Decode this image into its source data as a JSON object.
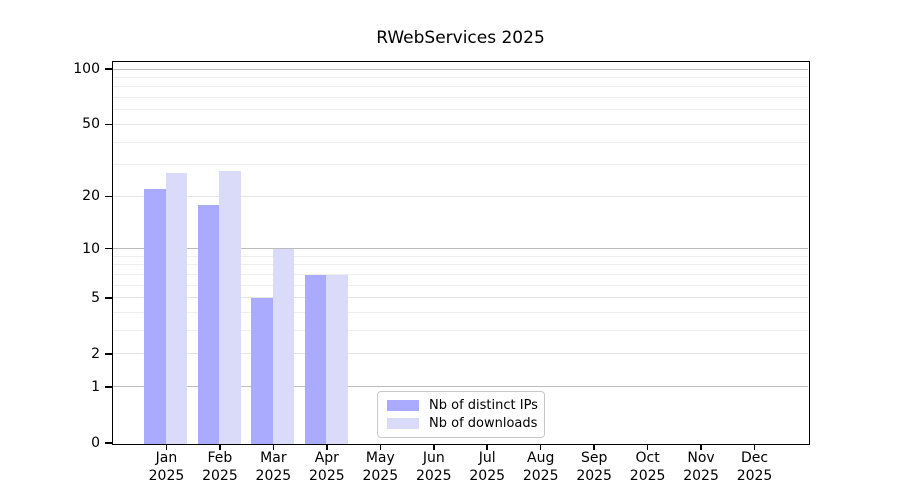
{
  "chart_data": {
    "type": "bar",
    "title": "RWebServices 2025",
    "year": "2025",
    "categories": [
      "Jan",
      "Feb",
      "Mar",
      "Apr",
      "May",
      "Jun",
      "Jul",
      "Aug",
      "Sep",
      "Oct",
      "Nov",
      "Dec"
    ],
    "series": [
      {
        "name": "Nb of distinct IPs",
        "color": "#aaaaff",
        "values": [
          22,
          18,
          5,
          7,
          0,
          0,
          0,
          0,
          0,
          0,
          0,
          0
        ]
      },
      {
        "name": "Nb of downloads",
        "color": "#dadaf9",
        "values": [
          27,
          28,
          10,
          7,
          0,
          0,
          0,
          0,
          0,
          0,
          0,
          0
        ]
      }
    ],
    "yscale": "log1p",
    "ylim": [
      0,
      100
    ],
    "yticks": [
      0,
      1,
      2,
      5,
      10,
      20,
      50,
      100
    ],
    "decade_ticks": [
      1,
      10,
      100
    ],
    "minor_ticks": [
      3,
      4,
      6,
      7,
      8,
      9,
      30,
      40,
      60,
      70,
      80,
      90
    ],
    "grid": true,
    "legend_position": "lower center",
    "colors": {
      "decade_grid": "#bcbcbc",
      "major_grid": "#e4e4e4",
      "minor_grid": "#efefef",
      "axis": "#000000",
      "background": "#ffffff"
    }
  }
}
